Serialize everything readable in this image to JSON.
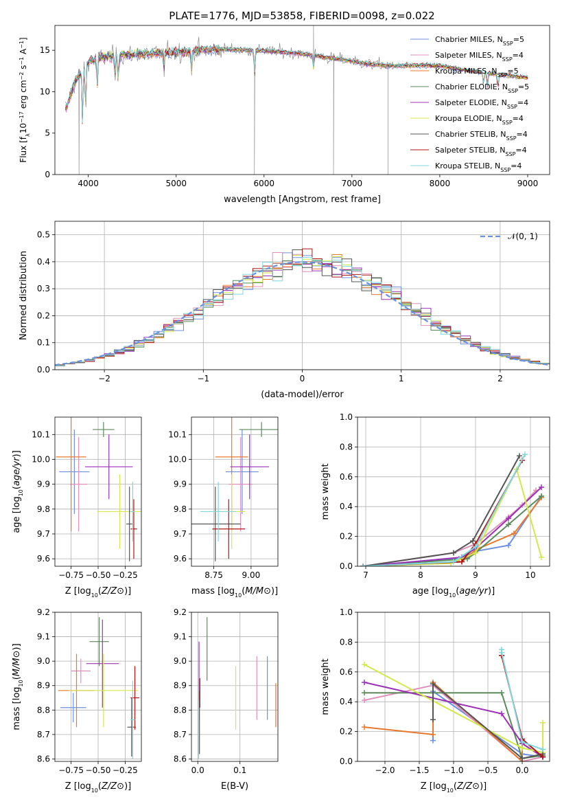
{
  "figure_title": "PLATE=1776, MJD=53858, FIBERID=0098, z=0.022",
  "models": [
    {
      "name": "Chabrier MILES, N$_{SSP}$=5",
      "label": "Chabrier MILES, N",
      "sub": "SSP",
      "suffix": "=5",
      "color": "#6b8fe0"
    },
    {
      "name": "Salpeter MILES, N$_{SSP}$=4",
      "label": "Salpeter MILES, N",
      "sub": "SSP",
      "suffix": "=4",
      "color": "#e08fbd"
    },
    {
      "name": "Kroupa MILES, N$_{SSP}$=5",
      "label": "Kroupa MILES, N",
      "sub": "SSP",
      "suffix": "=5",
      "color": "#e8792c"
    },
    {
      "name": "Chabrier ELODIE, N$_{SSP}$=5",
      "label": "Chabrier ELODIE, N",
      "sub": "SSP",
      "suffix": "=5",
      "color": "#5a8a5a"
    },
    {
      "name": "Salpeter ELODIE, N$_{SSP}$=4",
      "label": "Salpeter ELODIE, N",
      "sub": "SSP",
      "suffix": "=4",
      "color": "#9b30b8"
    },
    {
      "name": "Kroupa ELODIE, N$_{SSP}$=4",
      "label": "Kroupa ELODIE, N",
      "sub": "SSP",
      "suffix": "=4",
      "color": "#d4e84a"
    },
    {
      "name": "Chabrier STELIB, N$_{SSP}$=4",
      "label": "Chabrier STELIB, N",
      "sub": "SSP",
      "suffix": "=4",
      "color": "#555555"
    },
    {
      "name": "Salpeter STELIB, N$_{SSP}$=4",
      "label": "Salpeter STELIB, N",
      "sub": "SSP",
      "suffix": "=4",
      "color": "#b01515"
    },
    {
      "name": "Kroupa STELIB, N$_{SSP}$=4",
      "label": "Kroupa STELIB, N",
      "sub": "SSP",
      "suffix": "=4",
      "color": "#7fd8dc"
    }
  ],
  "data_color": "#8a8a8a",
  "chart_data": [
    {
      "id": "spectrum",
      "type": "line",
      "xlabel": "wavelength [Angstrom, rest frame]",
      "ylabel": "Flux [fλ10⁻¹⁷ erg cm⁻² s⁻¹ A⁻¹]",
      "ylabel_tspans": [
        "Flux [f",
        "λ",
        "10",
        "−17",
        " erg cm",
        "−2",
        " s",
        "−1",
        " A",
        "−1",
        "]"
      ],
      "xlim": [
        3620,
        9250
      ],
      "ylim": [
        0,
        18
      ],
      "xticks": [
        4000,
        5000,
        6000,
        7000,
        8000,
        9000
      ],
      "yticks": [
        0,
        5,
        10,
        15
      ],
      "continuum": [
        [
          3750,
          8.0
        ],
        [
          3800,
          9.8
        ],
        [
          3850,
          11.2
        ],
        [
          3900,
          12.0
        ],
        [
          3950,
          12.8
        ],
        [
          4000,
          13.6
        ],
        [
          4100,
          14.0
        ],
        [
          4200,
          14.2
        ],
        [
          4300,
          14.3
        ],
        [
          4400,
          14.4
        ],
        [
          4500,
          14.5
        ],
        [
          4700,
          14.6
        ],
        [
          5000,
          14.8
        ],
        [
          5300,
          15.0
        ],
        [
          5600,
          15.1
        ],
        [
          5900,
          15.0
        ],
        [
          6200,
          14.8
        ],
        [
          6500,
          14.5
        ],
        [
          6800,
          14.0
        ],
        [
          7000,
          13.7
        ],
        [
          7200,
          13.3
        ],
        [
          7500,
          13.1
        ],
        [
          7800,
          13.2
        ],
        [
          8000,
          13.1
        ],
        [
          8300,
          12.6
        ],
        [
          8600,
          12.2
        ],
        [
          8800,
          11.9
        ],
        [
          9000,
          11.7
        ]
      ],
      "absorption_lines": [
        [
          3934,
          6.5
        ],
        [
          3969,
          5.5
        ],
        [
          4102,
          3.5
        ],
        [
          4304,
          2.5
        ],
        [
          4340,
          3.0
        ],
        [
          4861,
          2.0
        ],
        [
          5175,
          2.5
        ],
        [
          5893,
          3.0
        ],
        [
          6563,
          1.5
        ],
        [
          8498,
          1.5
        ],
        [
          8542,
          1.8
        ],
        [
          8662,
          1.8
        ]
      ],
      "data_spikes": [
        [
          3895,
          0
        ],
        [
          5890,
          0
        ],
        [
          6790,
          0
        ],
        [
          7410,
          0
        ],
        [
          6563,
          18
        ]
      ]
    },
    {
      "id": "residuals",
      "type": "histogram",
      "xlabel": "(data-model)/error",
      "ylabel": "Normed distribution",
      "xlim": [
        -2.5,
        2.5
      ],
      "ylim": [
        0,
        0.55
      ],
      "xticks": [
        -2,
        -1,
        0,
        1,
        2
      ],
      "xtick_labels": [
        "−2",
        "−1",
        "0",
        "1",
        "2"
      ],
      "yticks": [
        0.0,
        0.1,
        0.2,
        0.3,
        0.4,
        0.5
      ],
      "bin_width": 0.1,
      "bin_start": -2.5,
      "gaussian_label": "𝒩(0, 1)",
      "gaussian_color": "#6b8fe0"
    },
    {
      "id": "age_vs_Z",
      "type": "scatter",
      "xlabel": "Z [log₁₀(Z/Z⊙)]",
      "ylabel": "age  [log₁₀(age/yr)]",
      "xlabel_tspans": [
        "Z [log",
        "10",
        "(",
        "Z/Z",
        "⊙",
        ")]"
      ],
      "ylabel_tspans": [
        "age  [log",
        "10",
        "(",
        "age/yr",
        ")]"
      ],
      "xlim": [
        -0.9,
        -0.1
      ],
      "ylim": [
        9.57,
        10.17
      ],
      "xticks": [
        -0.75,
        -0.5,
        -0.25
      ],
      "xtick_labels": [
        "−0.75",
        "−0.50",
        "−0.25"
      ],
      "yticks": [
        9.6,
        9.7,
        9.8,
        9.9,
        10.0,
        10.1
      ],
      "points": [
        {
          "x": -0.72,
          "y": 9.95,
          "ex": 0.14,
          "ey": 0.17
        },
        {
          "x": -0.68,
          "y": 9.9,
          "ex": 0.08,
          "ey": 0.19
        },
        {
          "x": -0.75,
          "y": 10.01,
          "ex": 0.14,
          "ey": 0.3
        },
        {
          "x": -0.45,
          "y": 10.12,
          "ex": 0.1,
          "ey": 0.03
        },
        {
          "x": -0.4,
          "y": 9.97,
          "ex": 0.22,
          "ey": 0.13
        },
        {
          "x": -0.3,
          "y": 9.79,
          "ex": 0.21,
          "ey": 0.15
        },
        {
          "x": -0.21,
          "y": 9.74,
          "ex": 0.03,
          "ey": 0.15
        },
        {
          "x": -0.17,
          "y": 9.72,
          "ex": 0.03,
          "ey": 0.12
        },
        {
          "x": -0.18,
          "y": 9.79,
          "ex": 0.02,
          "ey": 0.12
        }
      ]
    },
    {
      "id": "age_vs_mass",
      "type": "scatter",
      "xlabel": "mass [log₁₀(M/M⊙)]",
      "ylabel": "",
      "xlabel_tspans": [
        "mass [log",
        "10",
        "(",
        "M/M",
        "⊙",
        ")]"
      ],
      "xlim": [
        8.6,
        9.18
      ],
      "ylim": [
        9.57,
        10.17
      ],
      "xticks": [
        8.75,
        9.0
      ],
      "xtick_labels": [
        "8.75",
        "9.00"
      ],
      "yticks": [
        9.6,
        9.7,
        9.8,
        9.9,
        10.0,
        10.1
      ],
      "points": [
        {
          "x": 8.94,
          "y": 9.95,
          "ex": 0.11,
          "ey": 0.17
        },
        {
          "x": 8.93,
          "y": 9.9,
          "ex": 0.08,
          "ey": 0.19
        },
        {
          "x": 8.87,
          "y": 10.01,
          "ex": 0.11,
          "ey": 0.3
        },
        {
          "x": 9.07,
          "y": 10.12,
          "ex": 0.15,
          "ey": 0.03
        },
        {
          "x": 8.99,
          "y": 9.97,
          "ex": 0.13,
          "ey": 0.13
        },
        {
          "x": 8.87,
          "y": 9.79,
          "ex": 0.09,
          "ey": 0.15
        },
        {
          "x": 8.76,
          "y": 9.74,
          "ex": 0.17,
          "ey": 0.15
        },
        {
          "x": 8.85,
          "y": 9.72,
          "ex": 0.11,
          "ey": 0.12
        },
        {
          "x": 8.78,
          "y": 9.79,
          "ex": 0.12,
          "ey": 0.12
        }
      ]
    },
    {
      "id": "weight_vs_age",
      "type": "line",
      "xlabel": "age  [log₁₀(age/yr)]",
      "ylabel": "mass weight",
      "xlabel_tspans": [
        "age  [log",
        "10",
        "(",
        "age/yr",
        ")]"
      ],
      "xlim": [
        6.85,
        10.35
      ],
      "ylim": [
        0,
        1.0
      ],
      "xticks": [
        7,
        8,
        9,
        10
      ],
      "yticks": [
        0.0,
        0.2,
        0.4,
        0.6,
        0.8,
        1.0
      ],
      "series": [
        {
          "x": [
            6.95,
            8.7,
            9.0,
            9.6,
            10.2
          ],
          "y": [
            0.0,
            0.05,
            0.1,
            0.14,
            0.47
          ]
        },
        {
          "x": [
            6.95,
            8.6,
            9.0,
            9.6,
            9.85,
            10.1
          ],
          "y": [
            0.0,
            0.09,
            0.15,
            0.33,
            0.41,
            0.51
          ]
        },
        {
          "x": [
            6.95,
            8.75,
            9.0,
            9.7,
            10.2
          ],
          "y": [
            0.0,
            0.03,
            0.11,
            0.22,
            0.46
          ]
        },
        {
          "x": [
            6.95,
            8.85,
            9.0,
            9.6,
            10.2
          ],
          "y": [
            0.0,
            0.05,
            0.09,
            0.28,
            0.47
          ]
        },
        {
          "x": [
            6.95,
            8.75,
            9.0,
            9.6,
            10.2
          ],
          "y": [
            0.0,
            0.06,
            0.12,
            0.32,
            0.53
          ]
        },
        {
          "x": [
            6.95,
            8.55,
            9.0,
            9.75,
            10.2
          ],
          "y": [
            0.0,
            0.02,
            0.09,
            0.65,
            0.06
          ]
        },
        {
          "x": [
            6.95,
            8.6,
            8.95,
            9.8
          ],
          "y": [
            0.0,
            0.09,
            0.17,
            0.74
          ]
        },
        {
          "x": [
            6.95,
            8.75,
            9.0,
            9.85
          ],
          "y": [
            0.0,
            0.03,
            0.15,
            0.71
          ]
        },
        {
          "x": [
            6.95,
            8.6,
            9.0,
            9.9
          ],
          "y": [
            0.0,
            0.03,
            0.13,
            0.75
          ]
        }
      ]
    },
    {
      "id": "mass_vs_Z",
      "type": "scatter",
      "xlabel": "Z [log₁₀(Z/Z⊙)]",
      "ylabel": "mass [log₁₀(M/M⊙)]",
      "xlabel_tspans": [
        "Z [log",
        "10",
        "(",
        "Z/Z",
        "⊙",
        ")]"
      ],
      "ylabel_tspans": [
        "mass [log",
        "10",
        "(",
        "M/M",
        "⊙",
        ")]"
      ],
      "xlim": [
        -0.9,
        -0.1
      ],
      "ylim": [
        8.59,
        9.2
      ],
      "xticks": [
        -0.75,
        -0.5,
        -0.25
      ],
      "xtick_labels": [
        "−0.75",
        "−0.50",
        "−0.25"
      ],
      "yticks": [
        8.6,
        8.7,
        8.8,
        8.9,
        9.0,
        9.1,
        9.2
      ],
      "points": [
        {
          "x": -0.73,
          "y": 8.81,
          "ex": 0.12,
          "ey": 0.06
        },
        {
          "x": -0.66,
          "y": 8.96,
          "ex": 0.09,
          "ey": 0.05
        },
        {
          "x": -0.7,
          "y": 8.88,
          "ex": 0.17,
          "ey": 0.15
        },
        {
          "x": -0.49,
          "y": 9.08,
          "ex": 0.09,
          "ey": 0.1
        },
        {
          "x": -0.46,
          "y": 8.99,
          "ex": 0.15,
          "ey": 0.18
        },
        {
          "x": -0.45,
          "y": 8.88,
          "ex": 0.32,
          "ey": 0.15
        },
        {
          "x": -0.19,
          "y": 8.73,
          "ex": 0.04,
          "ey": 0.12
        },
        {
          "x": -0.16,
          "y": 8.85,
          "ex": 0.04,
          "ey": 0.13
        },
        {
          "x": -0.18,
          "y": 8.76,
          "ex": 0.02,
          "ey": 0.16
        }
      ]
    },
    {
      "id": "mass_vs_EBV",
      "type": "scatter",
      "xlabel": "E(B-V)",
      "ylabel": "",
      "xlim": [
        -0.015,
        0.19
      ],
      "ylim": [
        8.59,
        9.2
      ],
      "xticks": [
        0.0,
        0.1
      ],
      "xtick_labels": [
        "0.0",
        "0.1"
      ],
      "yticks": [
        8.6,
        8.7,
        8.8,
        8.9,
        9.0,
        9.1,
        9.2
      ],
      "points": [
        {
          "x": 0.165,
          "y": 8.89,
          "ex": 0,
          "ey": 0.13
        },
        {
          "x": 0.14,
          "y": 8.89,
          "ex": 0,
          "ey": 0.13
        },
        {
          "x": 0.185,
          "y": 8.82,
          "ex": 0,
          "ey": 0.09
        },
        {
          "x": 0.022,
          "y": 9.05,
          "ex": 0,
          "ey": 0.13
        },
        {
          "x": 0.003,
          "y": 8.92,
          "ex": 0,
          "ey": 0.16
        },
        {
          "x": 0.09,
          "y": 8.85,
          "ex": 0,
          "ey": 0.13
        },
        {
          "x": 0.004,
          "y": 8.75,
          "ex": 0,
          "ey": 0.13
        },
        {
          "x": 0.005,
          "y": 8.87,
          "ex": 0,
          "ey": 0.06
        },
        {
          "x": 0.002,
          "y": 8.72,
          "ex": 0,
          "ey": 0.12
        }
      ]
    },
    {
      "id": "weight_vs_Z",
      "type": "line",
      "xlabel": "Z [log₁₀(Z/Z⊙)]",
      "ylabel": "mass weight",
      "xlabel_tspans": [
        "Z [log",
        "10",
        "(",
        "Z/Z",
        "⊙",
        ")]"
      ],
      "xlim": [
        -2.4,
        0.4
      ],
      "ylim": [
        0,
        1.0
      ],
      "xticks": [
        -2.0,
        -1.5,
        -1.0,
        -0.5,
        0.0
      ],
      "xtick_labels": [
        "−2.0",
        "−1.5",
        "−1.0",
        "−0.5",
        "0.0"
      ],
      "yticks": [
        0.0,
        0.2,
        0.4,
        0.6,
        0.8,
        1.0
      ],
      "series": [
        {
          "x": [
            -1.3,
            -1.3,
            0.0,
            0.3
          ],
          "y": [
            0.14,
            0.47,
            0.05,
            0.03
          ]
        },
        {
          "x": [
            -2.3,
            -1.3,
            0.0,
            0.3
          ],
          "y": [
            0.41,
            0.51,
            0.0,
            0.03
          ]
        },
        {
          "x": [
            -2.3,
            -1.3,
            -1.3,
            0.0,
            0.0,
            0.3
          ],
          "y": [
            0.23,
            0.18,
            0.53,
            0.0,
            0.12,
            0.03
          ]
        },
        {
          "x": [
            -2.3,
            -0.3,
            0.0,
            0.3
          ],
          "y": [
            0.46,
            0.46,
            0.02,
            0.04
          ]
        },
        {
          "x": [
            -2.3,
            -0.3,
            0.0,
            0.3
          ],
          "y": [
            0.53,
            0.32,
            0.12,
            0.03
          ]
        },
        {
          "x": [
            -2.3,
            0.0,
            0.3,
            0.3
          ],
          "y": [
            0.65,
            0.09,
            0.06,
            0.26
          ]
        },
        {
          "x": [
            -1.3,
            -1.3,
            0.0,
            0.3
          ],
          "y": [
            0.28,
            0.52,
            0.02,
            0.05
          ]
        },
        {
          "x": [
            -0.3,
            -0.3,
            0.0,
            0.3
          ],
          "y": [
            0.71,
            0.71,
            0.15,
            0.03
          ]
        },
        {
          "x": [
            -0.3,
            -0.3,
            0.0,
            0.3
          ],
          "y": [
            0.75,
            0.73,
            0.13,
            0.08
          ]
        }
      ]
    }
  ]
}
